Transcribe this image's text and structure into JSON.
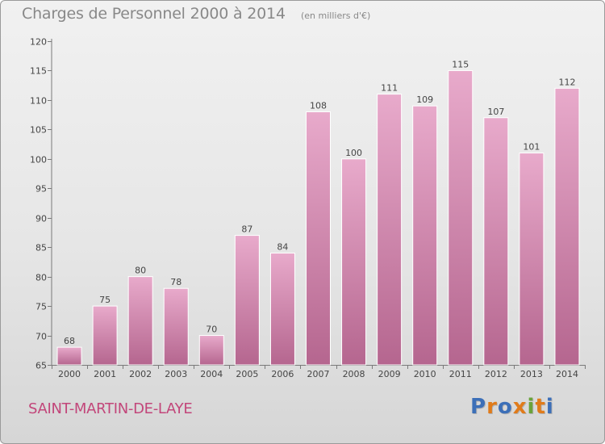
{
  "header": {
    "title": "Charges de Personnel 2000 à 2014",
    "subtitle": "(en milliers d'€)"
  },
  "footer": {
    "commune": "SAINT-MARTIN-DE-LAYE",
    "logo": "Proxiti"
  },
  "colors": {
    "bar_top": "#e8aacb",
    "bar_bottom": "#b5668f",
    "title": "#888888",
    "commune": "#c2467a",
    "logo": [
      "#3c6fb8",
      "#e07b1a",
      "#3c6fb8",
      "#e07b1a",
      "#6aa33a",
      "#e07b1a",
      "#3c6fb8"
    ]
  },
  "chart_data": {
    "type": "bar",
    "title": "Charges de Personnel 2000 à 2014",
    "subtitle": "(en milliers d'€)",
    "categories": [
      "2000",
      "2001",
      "2002",
      "2003",
      "2004",
      "2005",
      "2006",
      "2007",
      "2008",
      "2009",
      "2010",
      "2011",
      "2012",
      "2013",
      "2014"
    ],
    "values": [
      68,
      75,
      80,
      78,
      70,
      87,
      84,
      108,
      100,
      111,
      109,
      115,
      107,
      101,
      112
    ],
    "ylim": [
      65,
      120
    ],
    "yticks": [
      65,
      70,
      75,
      80,
      85,
      90,
      95,
      100,
      105,
      110,
      115,
      120
    ],
    "grid": false,
    "data_labels": true,
    "legend": "none"
  }
}
